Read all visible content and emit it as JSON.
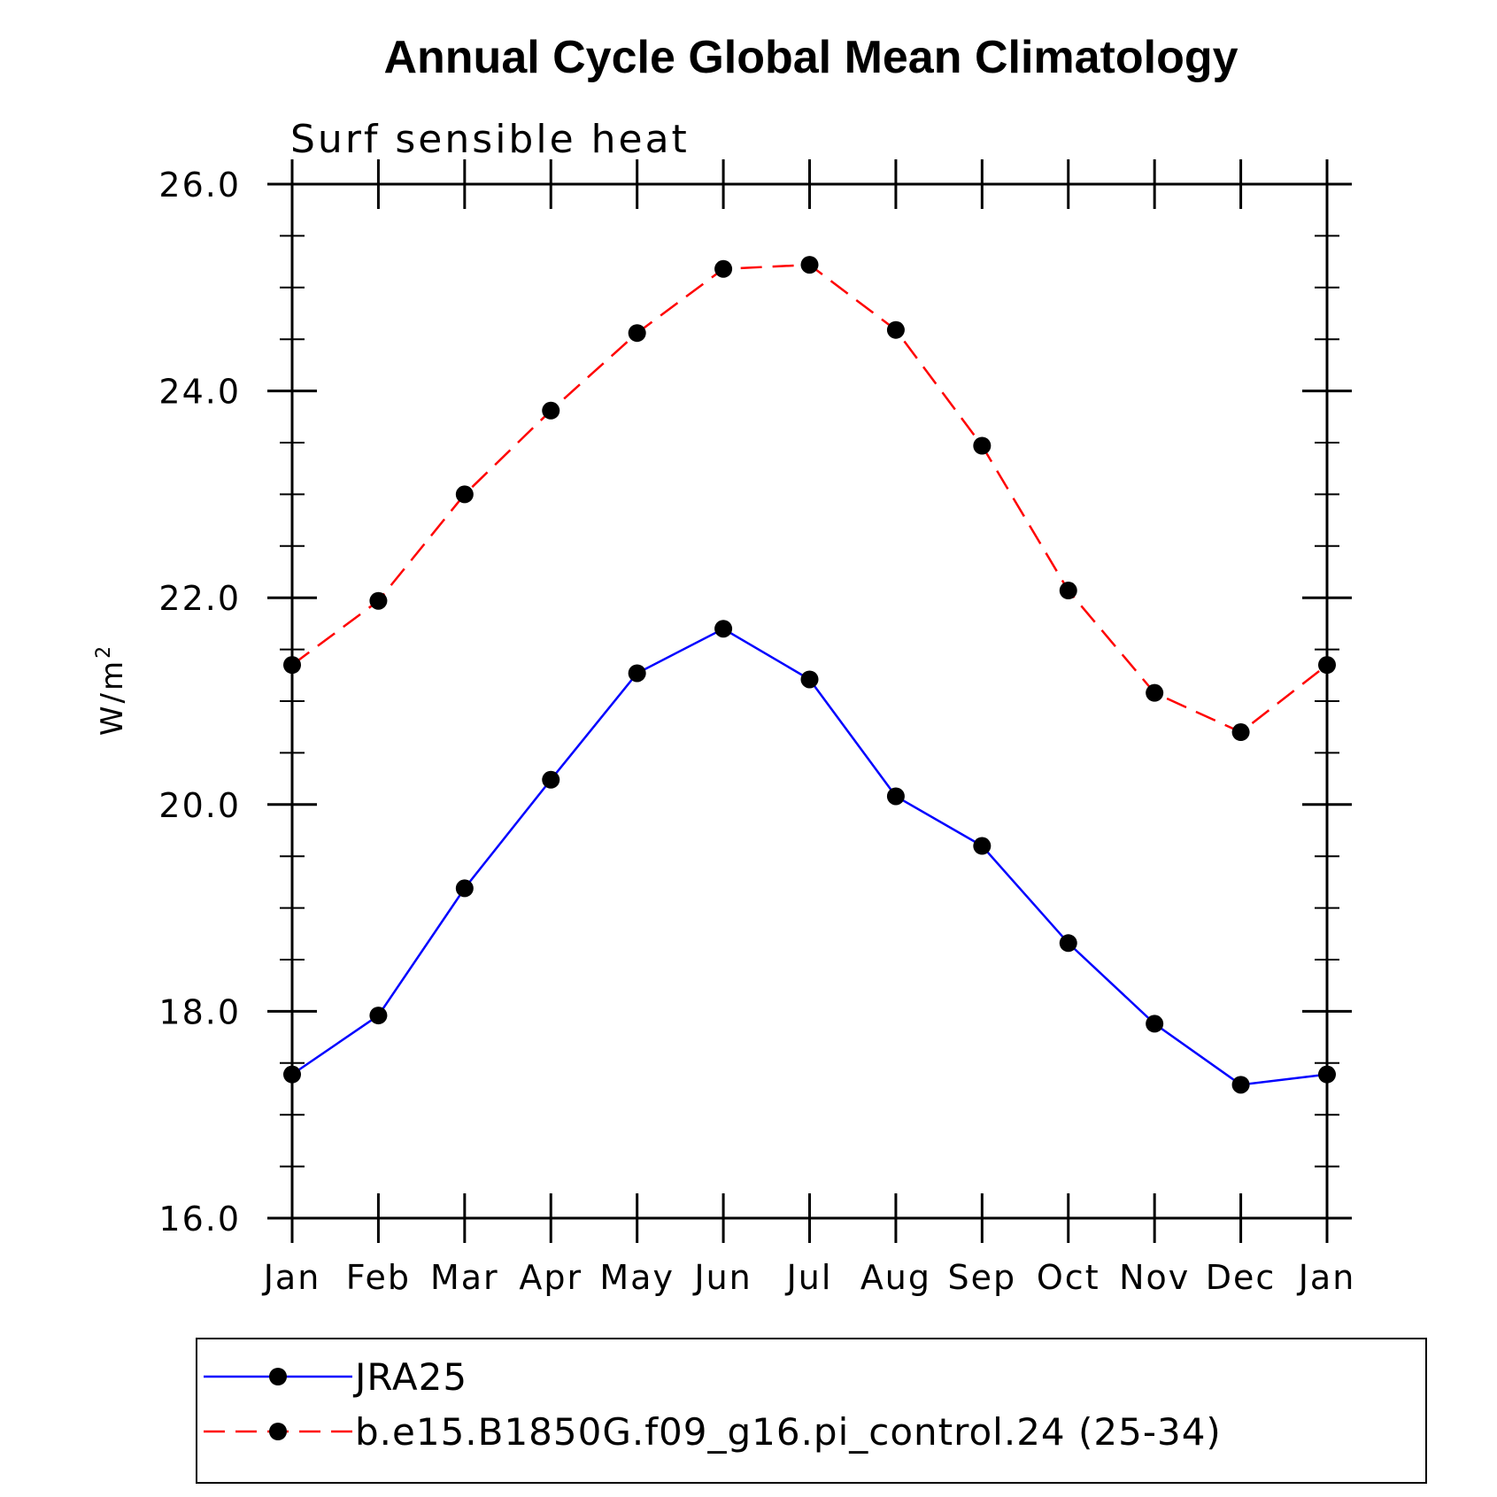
{
  "chart_data": {
    "type": "line",
    "title": "Annual Cycle Global Mean Climatology",
    "subtitle": "Surf sensible heat",
    "xlabel": "",
    "ylabel": "W/m",
    "ylabel_superscript": "2",
    "categories": [
      "Jan",
      "Feb",
      "Mar",
      "Apr",
      "May",
      "Jun",
      "Jul",
      "Aug",
      "Sep",
      "Oct",
      "Nov",
      "Dec",
      "Jan"
    ],
    "ylim": [
      16.0,
      26.0
    ],
    "yticks": [
      "16.0",
      "18.0",
      "20.0",
      "22.0",
      "24.0",
      "26.0"
    ],
    "grid": false,
    "legend_position": "bottom",
    "series": [
      {
        "name": "JRA25",
        "color": "#0000ff",
        "dash": "solid",
        "marker": "filled-circle",
        "values": [
          17.39,
          17.96,
          19.19,
          20.24,
          21.27,
          21.7,
          21.21,
          20.08,
          19.6,
          18.66,
          17.88,
          17.29,
          17.39
        ]
      },
      {
        "name": "b.e15.B1850G.f09_g16.pi_control.24 (25-34)",
        "color": "#ff0000",
        "dash": "dashed",
        "marker": "filled-circle",
        "values": [
          21.35,
          21.97,
          23.0,
          23.81,
          24.56,
          25.18,
          25.22,
          24.59,
          23.47,
          22.07,
          21.08,
          20.7,
          21.35
        ]
      }
    ]
  }
}
